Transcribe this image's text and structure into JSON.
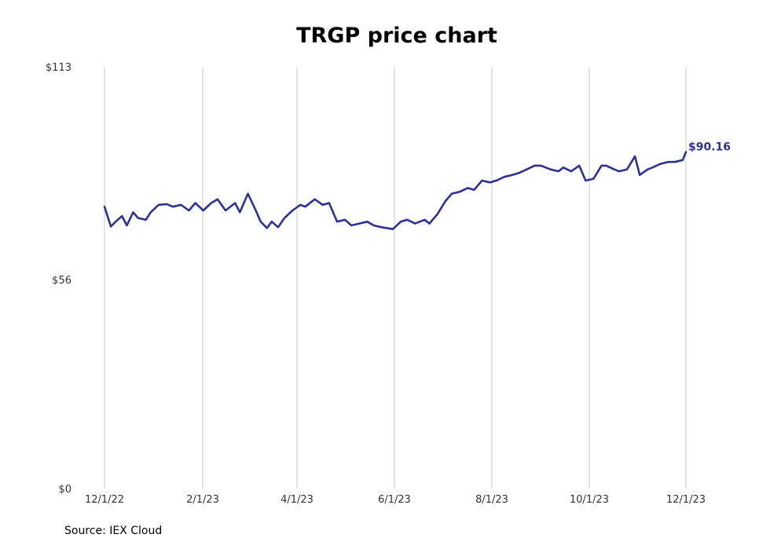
{
  "chart_data": {
    "type": "line",
    "title": "TRGP price chart",
    "source": "Source: IEX Cloud",
    "ylim": [
      0,
      113
    ],
    "y_ticks": [
      "$0",
      "$56",
      "$113"
    ],
    "x_ticks": [
      "12/1/22",
      "2/1/23",
      "4/1/23",
      "6/1/23",
      "8/1/23",
      "10/1/23",
      "12/1/23"
    ],
    "grid": "vertical",
    "line_color": "#2e3192",
    "last_value_label": "$90.16",
    "series": [
      {
        "x": [
          "2022-12-01",
          "2022-12-05",
          "2022-12-08",
          "2022-12-12",
          "2022-12-15",
          "2022-12-19",
          "2022-12-22",
          "2022-12-27",
          "2022-12-30",
          "2023-01-04",
          "2023-01-09",
          "2023-01-13",
          "2023-01-18",
          "2023-01-23",
          "2023-01-27",
          "2023-02-01",
          "2023-02-06",
          "2023-02-10",
          "2023-02-15",
          "2023-02-21",
          "2023-02-24",
          "2023-03-01",
          "2023-03-06",
          "2023-03-09",
          "2023-03-13",
          "2023-03-16",
          "2023-03-20",
          "2023-03-24",
          "2023-03-29",
          "2023-04-03",
          "2023-04-06",
          "2023-04-12",
          "2023-04-17",
          "2023-04-21",
          "2023-04-26",
          "2023-05-01",
          "2023-05-05",
          "2023-05-10",
          "2023-05-15",
          "2023-05-19",
          "2023-05-24",
          "2023-05-31",
          "2023-06-05",
          "2023-06-09",
          "2023-06-14",
          "2023-06-20",
          "2023-06-23",
          "2023-06-28",
          "2023-07-03",
          "2023-07-07",
          "2023-07-12",
          "2023-07-17",
          "2023-07-21",
          "2023-07-26",
          "2023-07-31",
          "2023-08-04",
          "2023-08-09",
          "2023-08-14",
          "2023-08-18",
          "2023-08-23",
          "2023-08-28",
          "2023-09-01",
          "2023-09-07",
          "2023-09-12",
          "2023-09-15",
          "2023-09-20",
          "2023-09-25",
          "2023-09-29",
          "2023-10-04",
          "2023-10-09",
          "2023-10-12",
          "2023-10-17",
          "2023-10-20",
          "2023-10-25",
          "2023-10-30",
          "2023-11-02",
          "2023-11-07",
          "2023-11-10",
          "2023-11-15",
          "2023-11-20",
          "2023-11-24",
          "2023-11-29",
          "2023-12-01"
        ],
        "values": [
          75.5,
          70.2,
          71.5,
          73.0,
          70.5,
          74.0,
          72.5,
          72.0,
          74.0,
          76.0,
          76.2,
          75.5,
          76.0,
          74.5,
          76.5,
          74.5,
          76.5,
          77.5,
          74.5,
          76.5,
          74.0,
          79.0,
          74.5,
          71.5,
          69.8,
          71.5,
          70.0,
          72.5,
          74.5,
          76.0,
          75.5,
          77.5,
          76.0,
          76.5,
          71.5,
          72.0,
          70.5,
          71.0,
          71.5,
          70.5,
          70.0,
          69.5,
          71.5,
          72.0,
          71.0,
          72.0,
          71.0,
          73.5,
          77.0,
          79.0,
          79.5,
          80.5,
          80.0,
          82.5,
          82.0,
          82.5,
          83.5,
          84.0,
          84.5,
          85.5,
          86.5,
          86.5,
          85.5,
          85.0,
          86.0,
          85.0,
          86.5,
          82.5,
          83.0,
          86.5,
          86.5,
          85.5,
          85.0,
          85.5,
          89.0,
          84.0,
          85.5,
          86.0,
          87.0,
          87.5,
          87.5,
          88.0,
          90.16
        ]
      }
    ]
  }
}
